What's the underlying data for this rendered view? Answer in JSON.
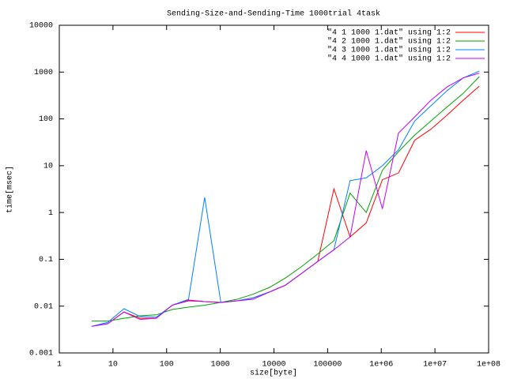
{
  "chart_data": {
    "type": "line",
    "title": "Sending-Size-and-Sending-Time 1000trial 4task",
    "x_label": "size[byte]",
    "y_label": "time[msec]",
    "x_log": true,
    "y_log": true,
    "legend": "top-right",
    "x": [
      4,
      8,
      16,
      32,
      64,
      128,
      256,
      512,
      1024,
      2048,
      4096,
      8192,
      16384,
      32768,
      65536,
      131072,
      262144,
      524288,
      1048576,
      2097152,
      4194304,
      8388608,
      16777216,
      33554432,
      67108864
    ],
    "series": [
      {
        "name": "\"4 1 1000 1.dat\" using 1:2",
        "color": "#ff0000",
        "values": [
          0.0037,
          0.0042,
          0.0075,
          0.0055,
          0.0055,
          0.0105,
          0.0135,
          0.0125,
          0.012,
          0.013,
          0.015,
          0.02,
          0.028,
          0.05,
          0.09,
          3.2,
          0.3,
          0.6,
          5,
          7,
          35,
          60,
          120,
          250,
          500
        ]
      },
      {
        "name": "\"4 2 1000 1.dat\" using 1:2",
        "color": "#00a000",
        "values": [
          0.0048,
          0.0048,
          0.0055,
          0.0062,
          0.0065,
          0.0085,
          0.0095,
          0.0105,
          0.012,
          0.014,
          0.018,
          0.025,
          0.04,
          0.07,
          0.13,
          0.25,
          2.6,
          1.0,
          8,
          20,
          45,
          90,
          180,
          350,
          800
        ]
      },
      {
        "name": "\"4 3 1000 1.dat\" using 1:2",
        "color": "#0080ff",
        "values": [
          0.0037,
          0.0045,
          0.0088,
          0.006,
          0.0058,
          0.0105,
          0.014,
          2.1,
          0.012,
          0.013,
          0.015,
          0.02,
          0.028,
          0.05,
          0.09,
          0.16,
          4.8,
          5.5,
          10,
          22,
          90,
          190,
          400,
          750,
          1050
        ]
      },
      {
        "name": "\"4 4 1000 1.dat\" using 1:2",
        "color": "#c000ff",
        "values": [
          0.0037,
          0.0042,
          0.0075,
          0.0052,
          0.0055,
          0.0105,
          0.013,
          0.0125,
          0.012,
          0.013,
          0.014,
          0.02,
          0.028,
          0.05,
          0.09,
          0.16,
          0.3,
          21,
          1.2,
          50,
          110,
          250,
          480,
          750,
          950
        ]
      }
    ],
    "xlim": [
      1,
      100000000
    ],
    "xticks": [
      1,
      10,
      100,
      1000,
      10000,
      100000,
      {
        "value": 1000000,
        "label": "1e+06"
      },
      {
        "value": 10000000,
        "label": "1e+07"
      },
      {
        "value": 100000000,
        "label": "1e+08"
      }
    ],
    "ylim": [
      0.001,
      10000
    ],
    "yticks": [
      0.001,
      0.01,
      0.1,
      1,
      10,
      100,
      1000,
      10000
    ]
  }
}
